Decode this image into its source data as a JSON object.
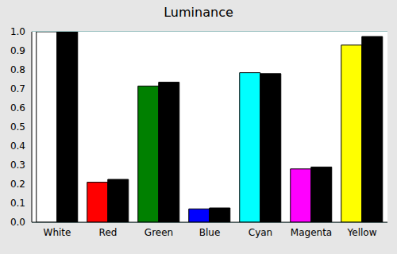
{
  "chart_data": {
    "type": "bar",
    "title": "Luminance",
    "categories": [
      "White",
      "Red",
      "Green",
      "Blue",
      "Cyan",
      "Magenta",
      "Yellow"
    ],
    "series": [
      {
        "colors": [
          "#ffffff",
          "#ff0000",
          "#008000",
          "#0000ff",
          "#00ffff",
          "#ff00ff",
          "#ffff00"
        ],
        "values": [
          1.0,
          0.21,
          0.715,
          0.07,
          0.785,
          0.28,
          0.93
        ]
      },
      {
        "color": "#000000",
        "values": [
          1.0,
          0.225,
          0.735,
          0.075,
          0.78,
          0.29,
          0.975
        ]
      }
    ],
    "ylim": [
      0,
      1
    ],
    "yticks": [
      {
        "value": 0,
        "label": "0.0"
      },
      0.1,
      0.2,
      0.3,
      0.4,
      0.5,
      0.6,
      0.7,
      0.8,
      0.9,
      {
        "value": 1,
        "label": "1.0"
      }
    ],
    "grid": true
  }
}
